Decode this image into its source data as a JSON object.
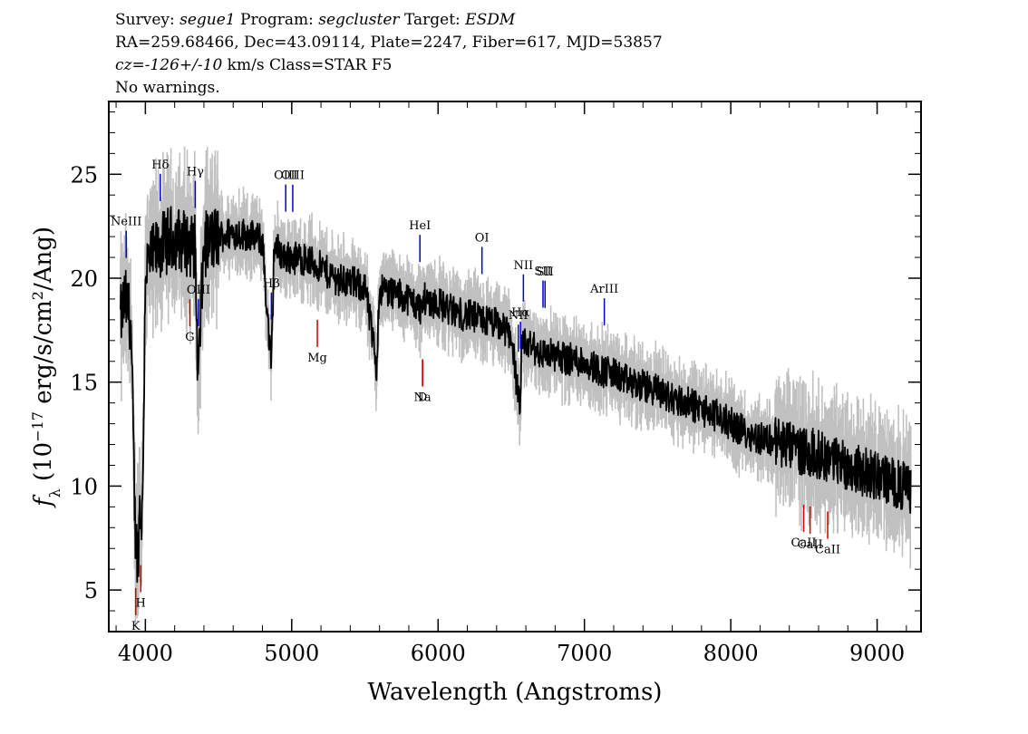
{
  "header": {
    "survey_label": "Survey:",
    "survey": "segue1",
    "program_label": "Program:",
    "program": "segcluster",
    "target_label": "Target:",
    "target": "ESDM",
    "line2": "RA=259.68466, Dec=43.09114, Plate=2247, Fiber=617, MJD=53857",
    "cz_label": "cz=",
    "cz_value": "-126+/-10",
    "cz_rest": " km/s Class=STAR F5",
    "line4": "No warnings."
  },
  "colors": {
    "flux": "#000000",
    "error": "#c0c0c0",
    "emission": "#0000cc",
    "absorption": "#cc0000"
  },
  "chart_data": {
    "type": "line",
    "xlabel": "Wavelength (Angstroms)",
    "ylabel_parts": [
      "f",
      "λ",
      " (10",
      "−17",
      " erg/s/cm",
      "2",
      "/Ang)"
    ],
    "xlim": [
      3750,
      9300
    ],
    "ylim": [
      3,
      28.5
    ],
    "xticks": [
      4000,
      5000,
      6000,
      7000,
      8000,
      9000
    ],
    "yticks": [
      5,
      10,
      15,
      20,
      25
    ],
    "grid": false,
    "series": [
      {
        "role": "flux",
        "x": [
          3830,
          3860,
          3900,
          3930,
          3950,
          3960,
          3980,
          4000,
          4050,
          4100,
          4150,
          4200,
          4300,
          4340,
          4360,
          4400,
          4500,
          4600,
          4700,
          4800,
          4860,
          4880,
          4950,
          5000,
          5100,
          5200,
          5300,
          5400,
          5500,
          5580,
          5600,
          5700,
          5800,
          5890,
          5900,
          6000,
          6100,
          6200,
          6300,
          6400,
          6500,
          6560,
          6570,
          6600,
          6700,
          6800,
          6900,
          7000,
          7100,
          7200,
          7300,
          7400,
          7500,
          7600,
          7700,
          7800,
          7900,
          8000,
          8100,
          8200,
          8300,
          8400,
          8500,
          8600,
          8700,
          8800,
          8900,
          9000,
          9100,
          9200,
          9230
        ],
        "y": [
          18,
          19,
          18,
          8,
          6.5,
          9,
          8.5,
          20.5,
          21,
          21.5,
          21.8,
          22,
          21.6,
          21.5,
          15,
          21.6,
          22,
          22.2,
          22.1,
          21.8,
          15.5,
          21.6,
          21,
          21,
          20.9,
          20.5,
          20,
          19.8,
          19.6,
          15.8,
          19.5,
          19.3,
          19,
          18.5,
          19,
          18.8,
          18.4,
          18.2,
          18,
          17.8,
          17.3,
          13.5,
          16.5,
          16.9,
          16.4,
          16.3,
          16.1,
          16,
          15.6,
          15.4,
          15,
          14.8,
          14.6,
          14.2,
          14,
          13.7,
          13.4,
          13,
          12.6,
          12.3,
          12.2,
          11.9,
          11.7,
          11.5,
          11.3,
          11,
          10.7,
          10.5,
          10.2,
          9.9,
          9.9
        ]
      }
    ],
    "lines": [
      {
        "label": "NeIII",
        "wave": 3869,
        "kind": "emission"
      },
      {
        "label": "Hδ",
        "wave": 4102,
        "kind": "emission"
      },
      {
        "label": "Hγ",
        "wave": 4341,
        "kind": "emission"
      },
      {
        "label": "OIII",
        "wave": 4363,
        "kind": "emission"
      },
      {
        "label": "Hβ",
        "wave": 4861,
        "kind": "emission"
      },
      {
        "label": "OIII",
        "wave": 4959,
        "kind": "emission"
      },
      {
        "label": "OIII",
        "wave": 5007,
        "kind": "emission"
      },
      {
        "label": "HeI",
        "wave": 5876,
        "kind": "emission"
      },
      {
        "label": "OI",
        "wave": 6300,
        "kind": "emission"
      },
      {
        "label": "NII",
        "wave": 6548,
        "kind": "emission"
      },
      {
        "label": "Hα",
        "wave": 6563,
        "kind": "emission"
      },
      {
        "label": "NII",
        "wave": 6583,
        "kind": "emission"
      },
      {
        "label": "SII",
        "wave": 6717,
        "kind": "emission"
      },
      {
        "label": "SII",
        "wave": 6731,
        "kind": "emission"
      },
      {
        "label": "ArIII",
        "wave": 7136,
        "kind": "emission"
      },
      {
        "label": "K",
        "wave": 3934,
        "kind": "absorption"
      },
      {
        "label": "H",
        "wave": 3968,
        "kind": "absorption"
      },
      {
        "label": "G",
        "wave": 4304,
        "kind": "absorption"
      },
      {
        "label": "Mg",
        "wave": 5175,
        "kind": "absorption"
      },
      {
        "label": "Na",
        "wave": 5894,
        "kind": "absorption"
      },
      {
        "label": "D",
        "wave": 5894,
        "kind": "absorption"
      },
      {
        "label": "CaII",
        "wave": 8498,
        "kind": "absorption"
      },
      {
        "label": "CaII",
        "wave": 8542,
        "kind": "absorption"
      },
      {
        "label": "CaII",
        "wave": 8662,
        "kind": "absorption"
      }
    ]
  }
}
